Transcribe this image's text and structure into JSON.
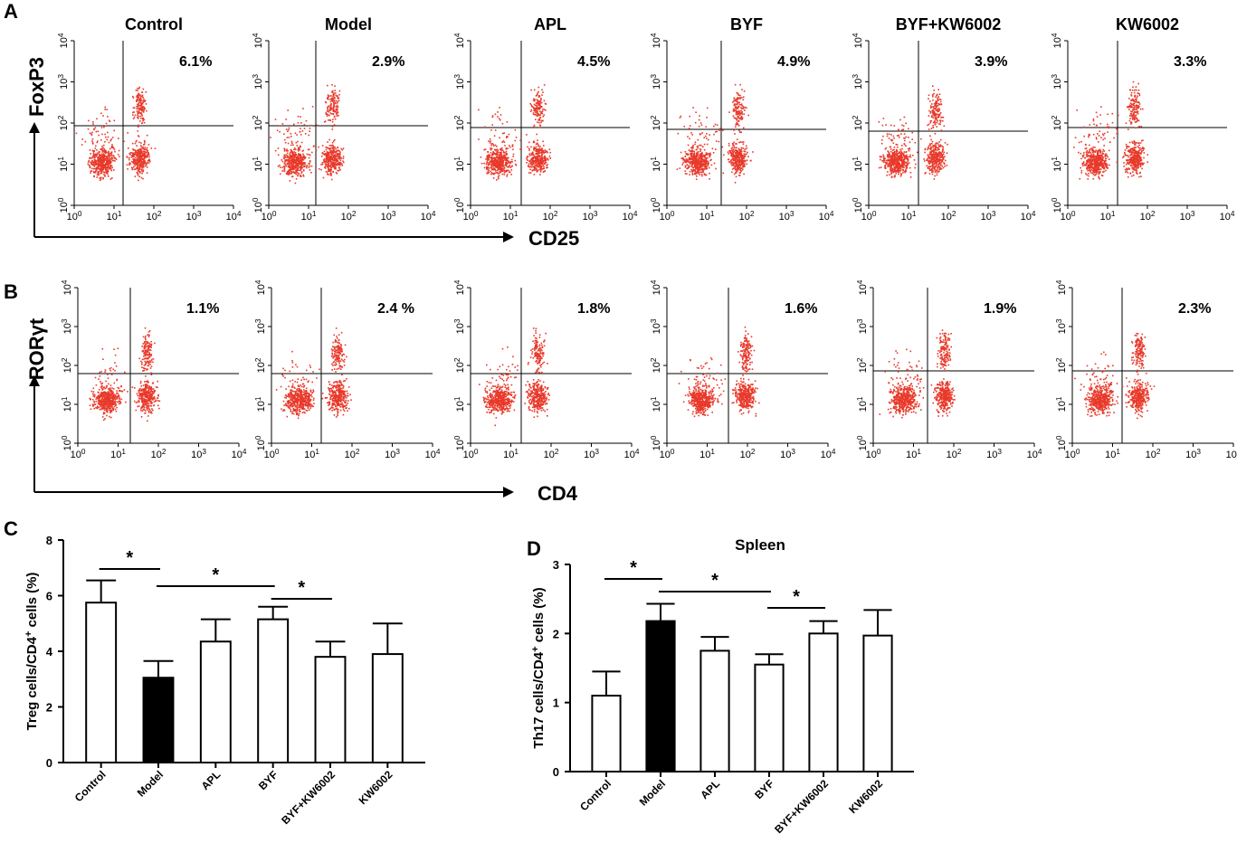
{
  "figure": {
    "panel_letters": [
      "A",
      "B",
      "C",
      "D"
    ],
    "groups": [
      "Control",
      "Model",
      "APL",
      "BYF",
      "BYF+KW6002",
      "KW6002"
    ],
    "panel_a": {
      "y_axis_label": "FoxP3",
      "x_axis_label": "CD25",
      "percentages": [
        "6.1%",
        "2.9%",
        "4.5%",
        "4.9%",
        "3.9%",
        "3.3%"
      ]
    },
    "panel_b": {
      "y_axis_label": "RORγt",
      "x_axis_label": "CD4",
      "percentages": [
        "1.1%",
        "2.4 %",
        "1.8%",
        "1.6%",
        "1.9%",
        "2.3%"
      ]
    },
    "tick_labels": [
      "10",
      "0",
      "1",
      "2",
      "3",
      "4"
    ]
  },
  "chart_data": [
    {
      "panel": "C",
      "type": "bar",
      "title": "",
      "categories": [
        "Control",
        "Model",
        "APL",
        "BYF",
        "BYF+KW6002",
        "KW6002"
      ],
      "values": [
        5.75,
        3.05,
        4.35,
        5.15,
        3.8,
        3.9
      ],
      "errors": [
        0.8,
        0.6,
        0.8,
        0.45,
        0.55,
        1.1
      ],
      "fills": [
        "#ffffff",
        "#000000",
        "#ffffff",
        "#ffffff",
        "#ffffff",
        "#ffffff"
      ],
      "ylabel": "Treg cells/CD4",
      "ylabel_sup": "+",
      "ylabel_tail": " cells (%)",
      "ylim": [
        0,
        8
      ],
      "yticks": [
        "0",
        "2",
        "4",
        "6",
        "8"
      ],
      "significance": [
        {
          "from": 0,
          "to": 1,
          "label": "*"
        },
        {
          "from": 1,
          "to": 3,
          "label": "*"
        },
        {
          "from": 3,
          "to": 4,
          "label": "*"
        }
      ]
    },
    {
      "panel": "D",
      "type": "bar",
      "title": "Spleen",
      "categories": [
        "Control",
        "Model",
        "APL",
        "BYF",
        "BYF+KW6002",
        "KW6002"
      ],
      "values": [
        1.1,
        2.18,
        1.75,
        1.55,
        2.0,
        1.97
      ],
      "errors": [
        0.35,
        0.25,
        0.2,
        0.15,
        0.18,
        0.37
      ],
      "fills": [
        "#ffffff",
        "#000000",
        "#ffffff",
        "#ffffff",
        "#ffffff",
        "#ffffff"
      ],
      "ylabel": "Th17 cells/CD4",
      "ylabel_sup": "+",
      "ylabel_tail": " cells (%)",
      "ylim": [
        0,
        3
      ],
      "yticks": [
        "0",
        "1",
        "2",
        "3"
      ],
      "significance": [
        {
          "from": 0,
          "to": 1,
          "label": "*"
        },
        {
          "from": 1,
          "to": 3,
          "label": "*"
        },
        {
          "from": 3,
          "to": 4,
          "label": "*"
        }
      ]
    }
  ]
}
